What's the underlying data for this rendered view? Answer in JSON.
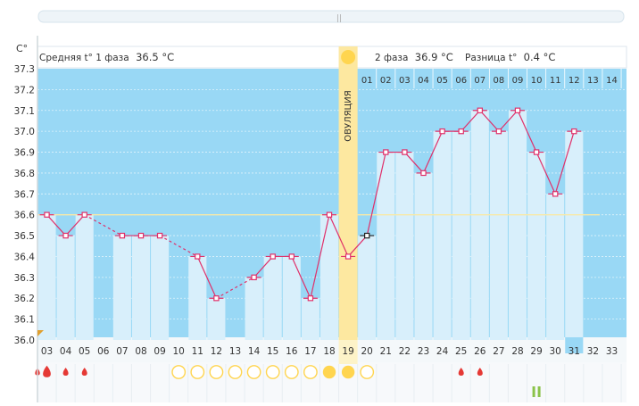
{
  "header": {
    "unit_label": "C°",
    "phase1_prefix": "Средняя t° 1 фаза",
    "phase1_value": "36.5 °C",
    "phase2_prefix": "2 фаза",
    "phase2_value": "36.9 °C",
    "diff_prefix": "Разница t°",
    "diff_value": "0.4 °C",
    "ovulation_label": "ОВУЛЯЦИЯ"
  },
  "colors": {
    "chart_bg": "#99d8f5",
    "column": "#d8effb",
    "line": "#e0306a",
    "ovulation": "#fde8a0",
    "sun": "#ffd54f",
    "drop": "#e53935",
    "pill": "#8bc34a"
  },
  "chart_data": {
    "type": "line",
    "title": "",
    "xlabel": "",
    "ylabel": "C°",
    "ylim": [
      36.0,
      37.3
    ],
    "yticks": [
      "37.3",
      "37.2",
      "37.1",
      "37.0",
      "36.9",
      "36.8",
      "36.7",
      "36.6",
      "36.5",
      "36.4",
      "36.3",
      "36.2",
      "36.1",
      "36.0"
    ],
    "x": [
      "03",
      "04",
      "05",
      "06",
      "07",
      "08",
      "09",
      "10",
      "11",
      "12",
      "13",
      "14",
      "15",
      "16",
      "17",
      "18",
      "19",
      "20",
      "21",
      "22",
      "23",
      "24",
      "25",
      "26",
      "27",
      "28",
      "29",
      "30",
      "31",
      "32",
      "33"
    ],
    "phase2_days": [
      "01",
      "02",
      "03",
      "04",
      "05",
      "06",
      "07",
      "08",
      "09",
      "10",
      "11",
      "12",
      "13",
      "14"
    ],
    "values": [
      36.6,
      36.5,
      36.6,
      null,
      36.5,
      36.5,
      36.5,
      null,
      36.4,
      36.2,
      null,
      36.3,
      36.4,
      36.4,
      36.2,
      36.6,
      36.4,
      36.5,
      36.9,
      36.9,
      36.8,
      37.0,
      37.0,
      37.1,
      37.0,
      37.1,
      36.9,
      36.7,
      37.0,
      null,
      null
    ],
    "ovulation_day": "19",
    "cover_line": 36.6,
    "current_day": "31",
    "drops": [
      "03",
      "04",
      "05"
    ],
    "drops_late": [
      "25",
      "26"
    ],
    "circles_empty": [
      "10",
      "11",
      "12",
      "13",
      "14",
      "15",
      "16",
      "17",
      "20"
    ],
    "circles_filled": [
      "18",
      "19"
    ],
    "pill_day": "29"
  }
}
